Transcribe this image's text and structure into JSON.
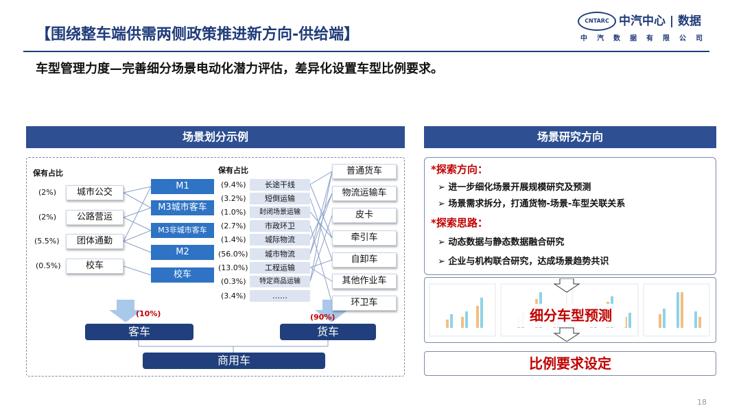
{
  "title": "【围绕整车端供需两侧政策推进新方向-供给端】",
  "logo": {
    "oval": "CNTARC",
    "name": "中汽中心 | 数据",
    "sub": "中汽数据有限公司"
  },
  "subtitle": "车型管理力度—完善细分场景电动化潜力评估，差异化设置车型比例要求。",
  "left": {
    "header": "场景划分示例",
    "share_label_left": "保有占比",
    "share_label_mid": "保有占比",
    "passenger_scenes": [
      {
        "pct": "(2%)",
        "name": "城市公交"
      },
      {
        "pct": "(2%)",
        "name": "公路营运"
      },
      {
        "pct": "(5.5%)",
        "name": "团体通勤"
      },
      {
        "pct": "(0.5%)",
        "name": "校车"
      }
    ],
    "passenger_types": [
      "M1",
      "M3城市客车",
      "M3非城市客车",
      "M2",
      "校车"
    ],
    "freight_scenes": [
      {
        "pct": "(9.4%)",
        "name": "长途干线"
      },
      {
        "pct": "(3.2%)",
        "name": "短倒运输"
      },
      {
        "pct": "(1.0%)",
        "name": "封闭场景运输"
      },
      {
        "pct": "(2.7%)",
        "name": "市政环卫"
      },
      {
        "pct": "(1.4%)",
        "name": "城际物流"
      },
      {
        "pct": "(56.0%)",
        "name": "城市物流"
      },
      {
        "pct": "(13.0%)",
        "name": "工程运输"
      },
      {
        "pct": "(0.3%)",
        "name": "特定商品运输"
      },
      {
        "pct": "(3.4%)",
        "name": "……"
      }
    ],
    "freight_types": [
      "普通货车",
      "物流运输车",
      "皮卡",
      "牵引车",
      "自卸车",
      "其他作业车",
      "环卫车"
    ],
    "bus_pct": "(10%)",
    "truck_pct": "(90%)",
    "bus": "客车",
    "truck": "货车",
    "commercial": "商用车"
  },
  "right": {
    "header": "场景研究方向",
    "dir_title": "*探索方向：",
    "dir_items": [
      "进一步细化场景开展规模研究及预测",
      "场景需求拆分，打通货物-场景-车型关联关系"
    ],
    "idea_title": "*探索思路：",
    "idea_items": [
      "动态数据与静态数据融合研究",
      "企业与机构联合研究，达成场景趋势共识"
    ],
    "forecast": "细分车型预测",
    "ratio": "比例要求设定"
  },
  "page_number": "18"
}
